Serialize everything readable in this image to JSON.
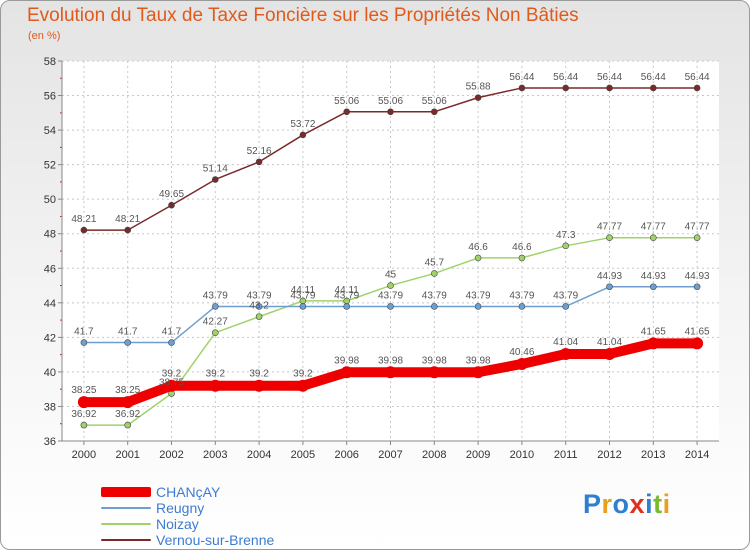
{
  "chart_data": {
    "type": "line",
    "title": "Evolution du Taux de Taxe Foncière sur les Propriétés Non Bâties",
    "ylabel": "(en %)",
    "xlabel": "",
    "x": [
      2000,
      2001,
      2002,
      2003,
      2004,
      2005,
      2006,
      2007,
      2008,
      2009,
      2010,
      2011,
      2012,
      2013,
      2014
    ],
    "ylim": [
      36,
      58
    ],
    "yticks": [
      36,
      38,
      40,
      42,
      44,
      46,
      48,
      50,
      52,
      54,
      56,
      58
    ],
    "grid": true,
    "legend_position": "bottom-left",
    "series": [
      {
        "name": "CHANçAY",
        "color": "#ee0000",
        "values": [
          38.25,
          38.25,
          39.2,
          39.2,
          39.2,
          39.2,
          39.98,
          39.98,
          39.98,
          39.98,
          40.46,
          41.04,
          41.04,
          41.65,
          41.65
        ]
      },
      {
        "name": "Reugny",
        "color": "#6f9fcf",
        "values": [
          41.7,
          41.7,
          41.7,
          43.79,
          43.79,
          43.79,
          43.79,
          43.79,
          43.79,
          43.79,
          43.79,
          43.79,
          44.93,
          44.93,
          44.93
        ]
      },
      {
        "name": "Noizay",
        "color": "#9fd36a",
        "values": [
          36.92,
          36.92,
          38.75,
          42.27,
          43.2,
          44.11,
          44.11,
          45,
          45.7,
          46.6,
          46.6,
          47.3,
          47.77,
          47.77,
          47.77
        ]
      },
      {
        "name": "Vernou-sur-Brenne",
        "color": "#7a2a2a",
        "values": [
          48.21,
          48.21,
          49.65,
          51.14,
          52.16,
          53.72,
          55.06,
          55.06,
          55.06,
          55.88,
          56.44,
          56.44,
          56.44,
          56.44,
          56.44
        ]
      }
    ]
  },
  "logo": {
    "text": "Proxiti"
  }
}
